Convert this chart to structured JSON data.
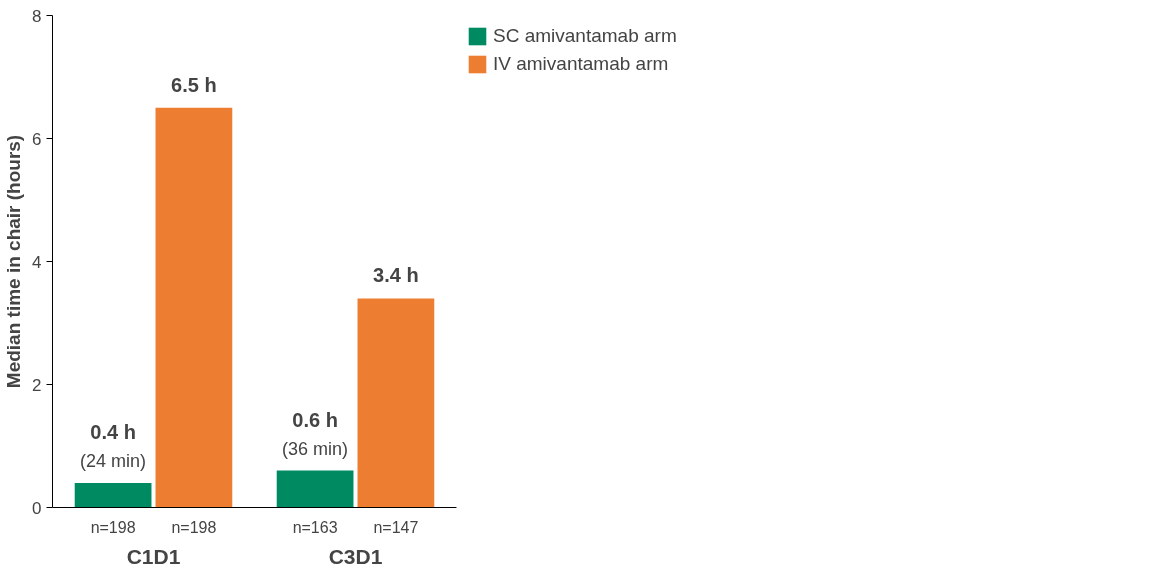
{
  "chart_data": {
    "type": "bar",
    "ylabel": "Median time in chair (hours)",
    "categories": [
      "C1D1",
      "C3D1"
    ],
    "series": [
      {
        "name": "SC amivantamab arm",
        "color": "#008a61",
        "values": [
          0.4,
          0.6
        ],
        "value_labels": [
          "0.4 h\n(24 min)",
          "0.6 h\n(36 min)"
        ]
      },
      {
        "name": "IV amivantamab arm",
        "color": "#ed7d31",
        "values": [
          6.5,
          3.4
        ],
        "value_labels": [
          "6.5 h",
          "3.4 h"
        ]
      }
    ],
    "annotations": [
      "n=198",
      "n=198",
      "n=163",
      "n=147"
    ],
    "ylim": [
      0,
      8
    ],
    "yticks": [
      0,
      2,
      4,
      6,
      8
    ],
    "grid": false,
    "legend": "right"
  }
}
